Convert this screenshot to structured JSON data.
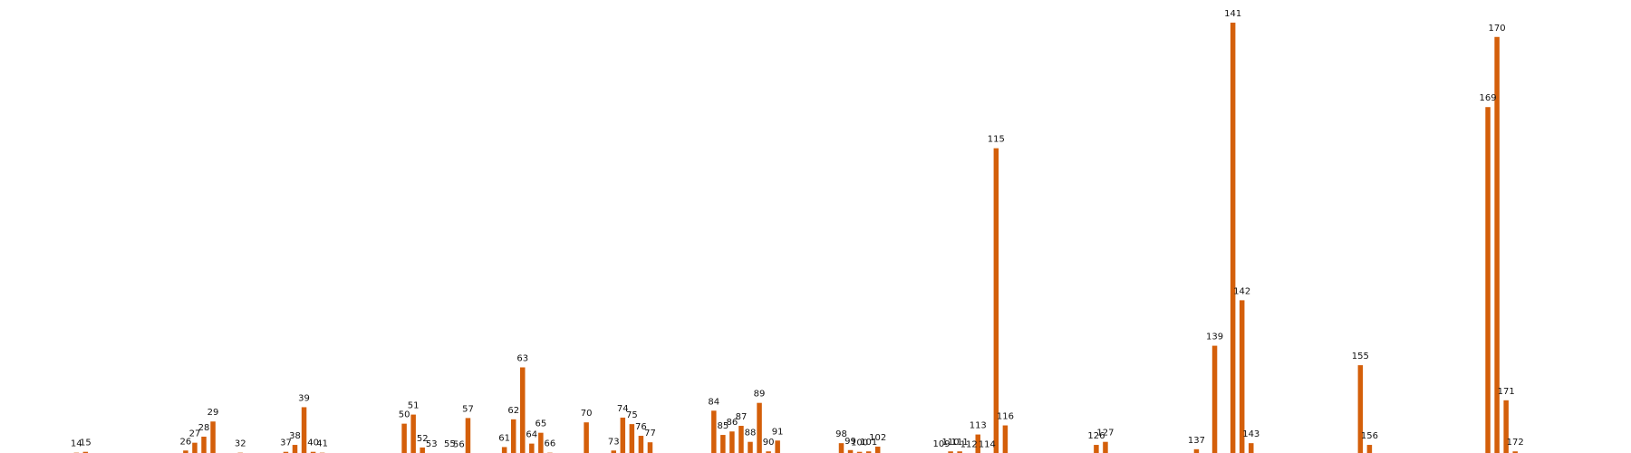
{
  "chart_data": {
    "type": "bar",
    "title": "",
    "xlabel": "",
    "ylabel": "",
    "axes_visible": false,
    "grid": false,
    "bar_color": "#d45f0a",
    "ylim": [
      0,
      100
    ],
    "x": [
      14,
      15,
      26,
      27,
      28,
      29,
      32,
      37,
      38,
      39,
      40,
      41,
      50,
      51,
      52,
      53,
      55,
      56,
      57,
      61,
      62,
      63,
      64,
      65,
      66,
      70,
      73,
      74,
      75,
      76,
      77,
      84,
      85,
      86,
      87,
      88,
      89,
      90,
      91,
      98,
      99,
      100,
      101,
      102,
      109,
      110,
      111,
      112,
      113,
      114,
      115,
      116,
      126,
      127,
      137,
      139,
      141,
      142,
      143,
      155,
      156,
      169,
      170,
      171,
      172
    ],
    "values": [
      0.7,
      0.9,
      1.2,
      3.0,
      4.4,
      7.9,
      0.7,
      0.9,
      2.5,
      11.2,
      0.9,
      0.7,
      7.4,
      9.5,
      1.9,
      0.6,
      0.6,
      0.5,
      8.7,
      2.0,
      8.4,
      20.4,
      2.8,
      5.3,
      0.7,
      7.7,
      1.2,
      8.8,
      7.3,
      4.6,
      3.1,
      10.4,
      4.8,
      5.6,
      6.9,
      3.2,
      12.2,
      1.0,
      3.5,
      2.9,
      1.3,
      0.9,
      1.0,
      2.1,
      0.6,
      1.0,
      1.0,
      0.5,
      4.9,
      0.5,
      71.0,
      7.0,
      2.5,
      3.2,
      1.5,
      25.4,
      100.0,
      35.9,
      2.9,
      20.9,
      2.5,
      80.5,
      96.7,
      12.8,
      1.0
    ]
  }
}
